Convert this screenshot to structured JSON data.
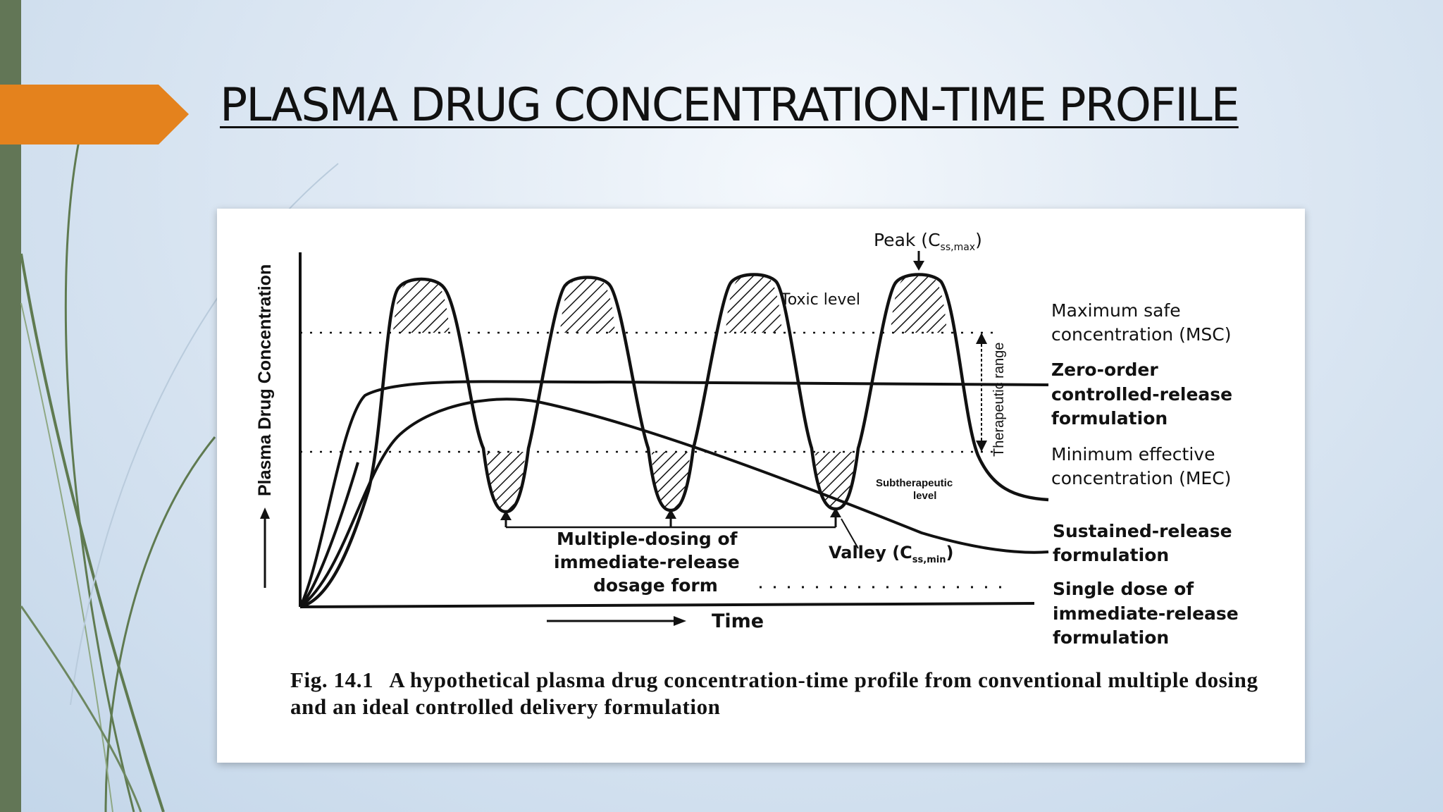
{
  "slide": {
    "title": "PLASMA DRUG CONCENTRATION-TIME PROFILE"
  },
  "figure": {
    "y_axis_label": "Plasma Drug Concentration",
    "x_axis_label": "Time",
    "annotations": {
      "peak_prefix": "Peak (C",
      "peak_sub": "ss,max",
      "toxic_level": "Toxic level",
      "therapeutic_range": "Therapeutic range",
      "subtherapeutic_line1": "Subtherapeutic",
      "subtherapeutic_line2": "level",
      "valley_prefix": "Valley (C",
      "valley_sub": "ss,min",
      "multiple_dosing_line1": "Multiple-dosing of",
      "multiple_dosing_line2": "immediate-release",
      "multiple_dosing_line3": "dosage form"
    },
    "right_labels": {
      "msc_line1": "Maximum safe",
      "msc_line2": "concentration (MSC)",
      "zero_order_line1": "Zero-order",
      "zero_order_line2": "controlled-release",
      "zero_order_line3": "formulation",
      "mec_line1": "Minimum effective",
      "mec_line2": "concentration (MEC)",
      "sustained_line1": "Sustained-release",
      "sustained_line2": "formulation",
      "single_dose_line1": "Single dose of",
      "single_dose_line2": "immediate-release",
      "single_dose_line3": "formulation"
    },
    "caption": {
      "fig_number": "Fig. 14.1",
      "text": "A hypothetical plasma drug concentration-time profile from conventional multiple dosing and an ideal controlled delivery formulation"
    }
  },
  "colors": {
    "accent_orange": "#e4821d",
    "side_bar_green": "#627656",
    "ink": "#111111"
  }
}
